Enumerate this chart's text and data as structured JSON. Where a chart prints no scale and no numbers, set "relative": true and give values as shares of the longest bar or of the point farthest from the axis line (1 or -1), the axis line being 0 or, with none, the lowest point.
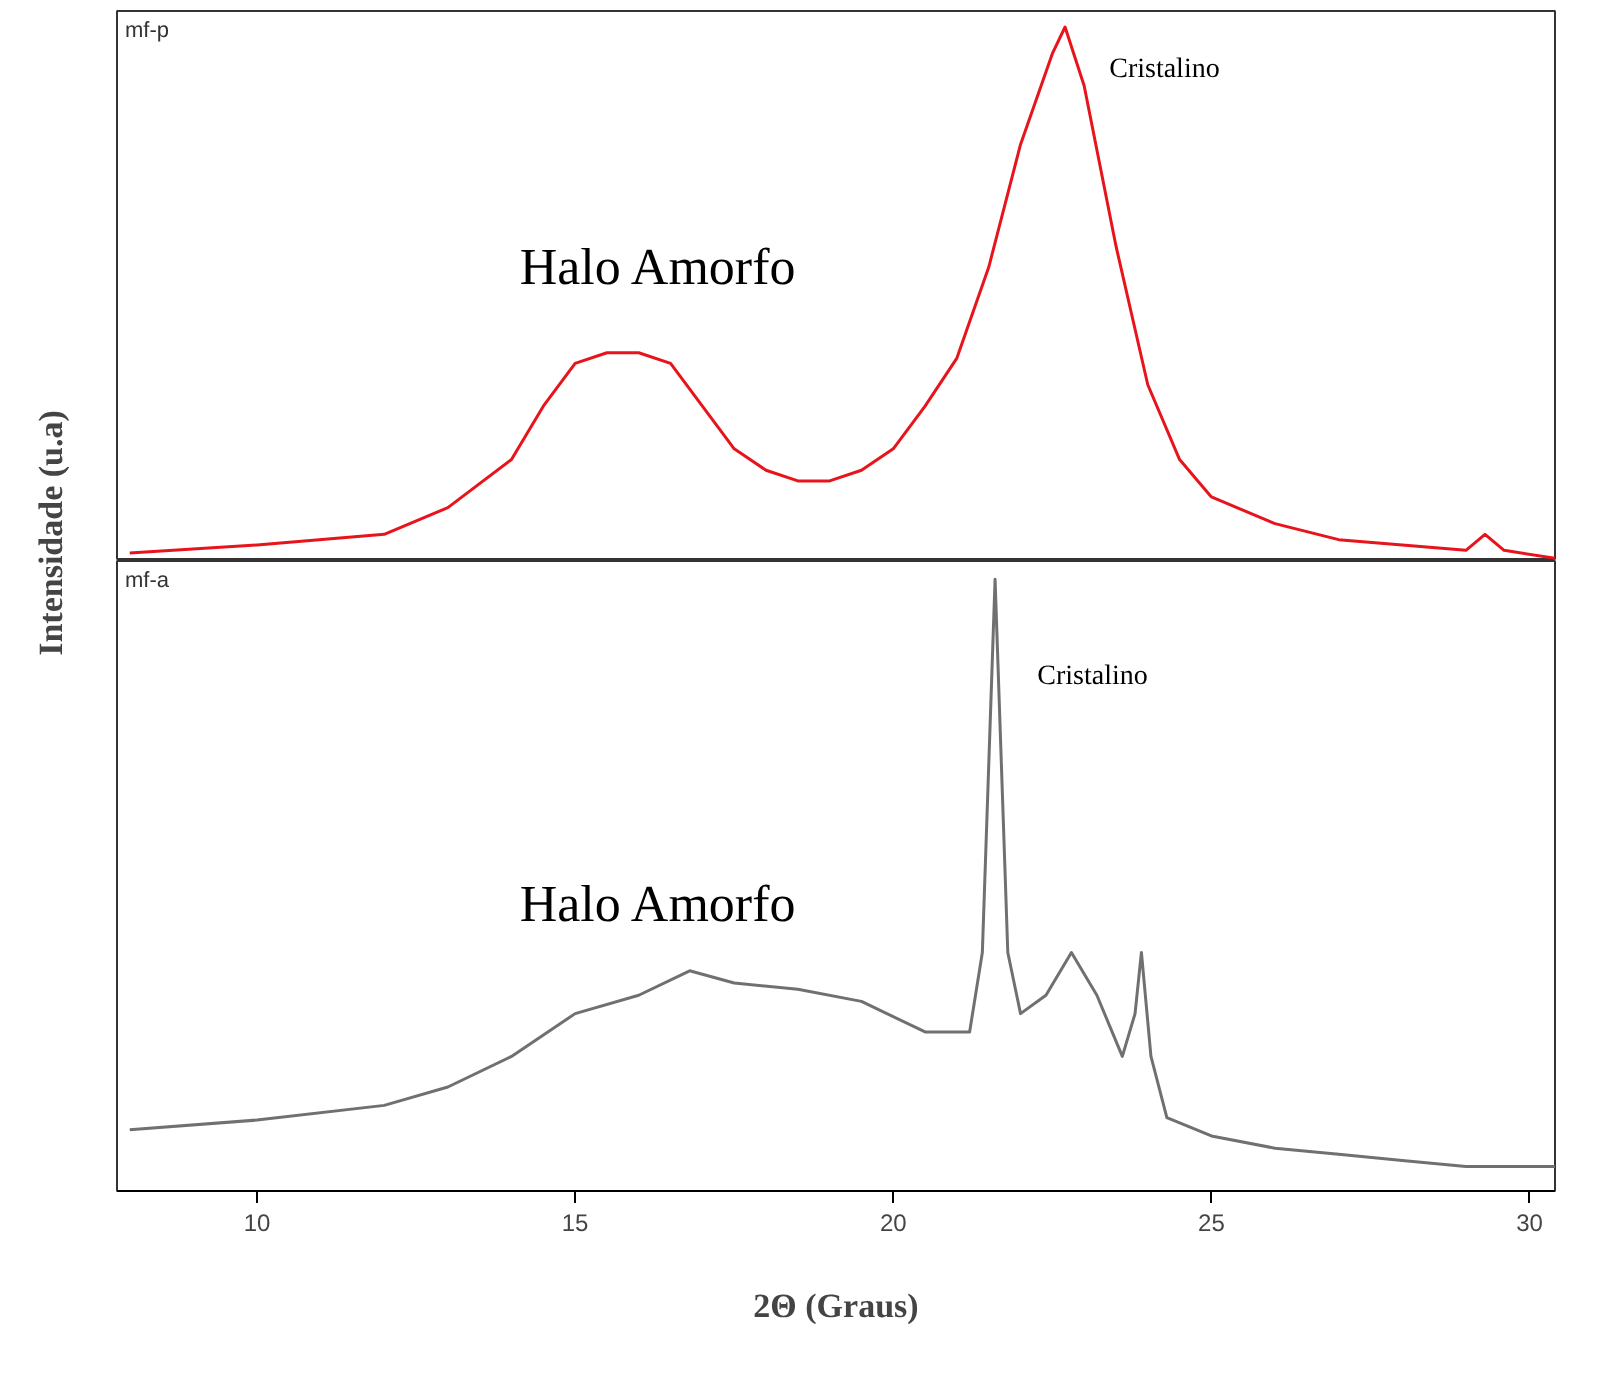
{
  "chart_data": [
    {
      "type": "line",
      "relative": true,
      "xlim": [
        7.8,
        30.4
      ],
      "xticks": [
        10,
        15,
        20,
        25,
        30
      ],
      "tick_labels": false,
      "ylabel": "Intensidade (u.a)",
      "legend": false,
      "grid": false,
      "series": [
        {
          "name": "mf-p",
          "color": "#e8141c",
          "x": [
            8,
            10,
            12,
            13,
            14,
            14.5,
            15,
            15.5,
            16,
            16.5,
            17,
            17.5,
            18,
            18.5,
            19,
            19.5,
            20,
            20.5,
            21,
            21.5,
            22,
            22.5,
            22.7,
            23,
            23.5,
            24,
            24.5,
            25,
            26,
            27,
            28,
            29,
            29.3,
            29.6,
            30.4
          ],
          "values": [
            0.015,
            0.03,
            0.05,
            0.1,
            0.19,
            0.29,
            0.37,
            0.39,
            0.39,
            0.37,
            0.29,
            0.21,
            0.17,
            0.15,
            0.15,
            0.17,
            0.21,
            0.29,
            0.38,
            0.55,
            0.78,
            0.95,
            1.0,
            0.89,
            0.59,
            0.33,
            0.19,
            0.12,
            0.07,
            0.04,
            0.03,
            0.02,
            0.05,
            0.02,
            0.005
          ]
        }
      ],
      "annotations": [
        "Halo Amorfo",
        "Cristalino"
      ]
    },
    {
      "type": "line",
      "relative": true,
      "xlim": [
        7.8,
        30.4
      ],
      "xticks": [
        10,
        15,
        20,
        25,
        30
      ],
      "tick_labels": "x",
      "xlabel": "2Θ (Graus)",
      "legend": false,
      "grid": false,
      "series": [
        {
          "name": "mf-a",
          "color": "#707070",
          "x": [
            8,
            10,
            12,
            13,
            14,
            15,
            16,
            16.8,
            17.5,
            18.5,
            19.5,
            20.5,
            21.2,
            21.4,
            21.6,
            21.8,
            22.0,
            22.4,
            22.8,
            23.2,
            23.6,
            23.8,
            23.9,
            24.05,
            24.3,
            25,
            26,
            27,
            28,
            29,
            30.4
          ],
          "values": [
            0.1,
            0.116,
            0.14,
            0.17,
            0.22,
            0.29,
            0.32,
            0.36,
            0.34,
            0.33,
            0.31,
            0.26,
            0.26,
            0.39,
            1.0,
            0.39,
            0.29,
            0.32,
            0.39,
            0.32,
            0.22,
            0.29,
            0.39,
            0.22,
            0.12,
            0.09,
            0.07,
            0.06,
            0.05,
            0.04,
            0.04
          ]
        }
      ],
      "annotations": [
        "Halo Amorfo",
        "Cristalino"
      ]
    }
  ]
}
